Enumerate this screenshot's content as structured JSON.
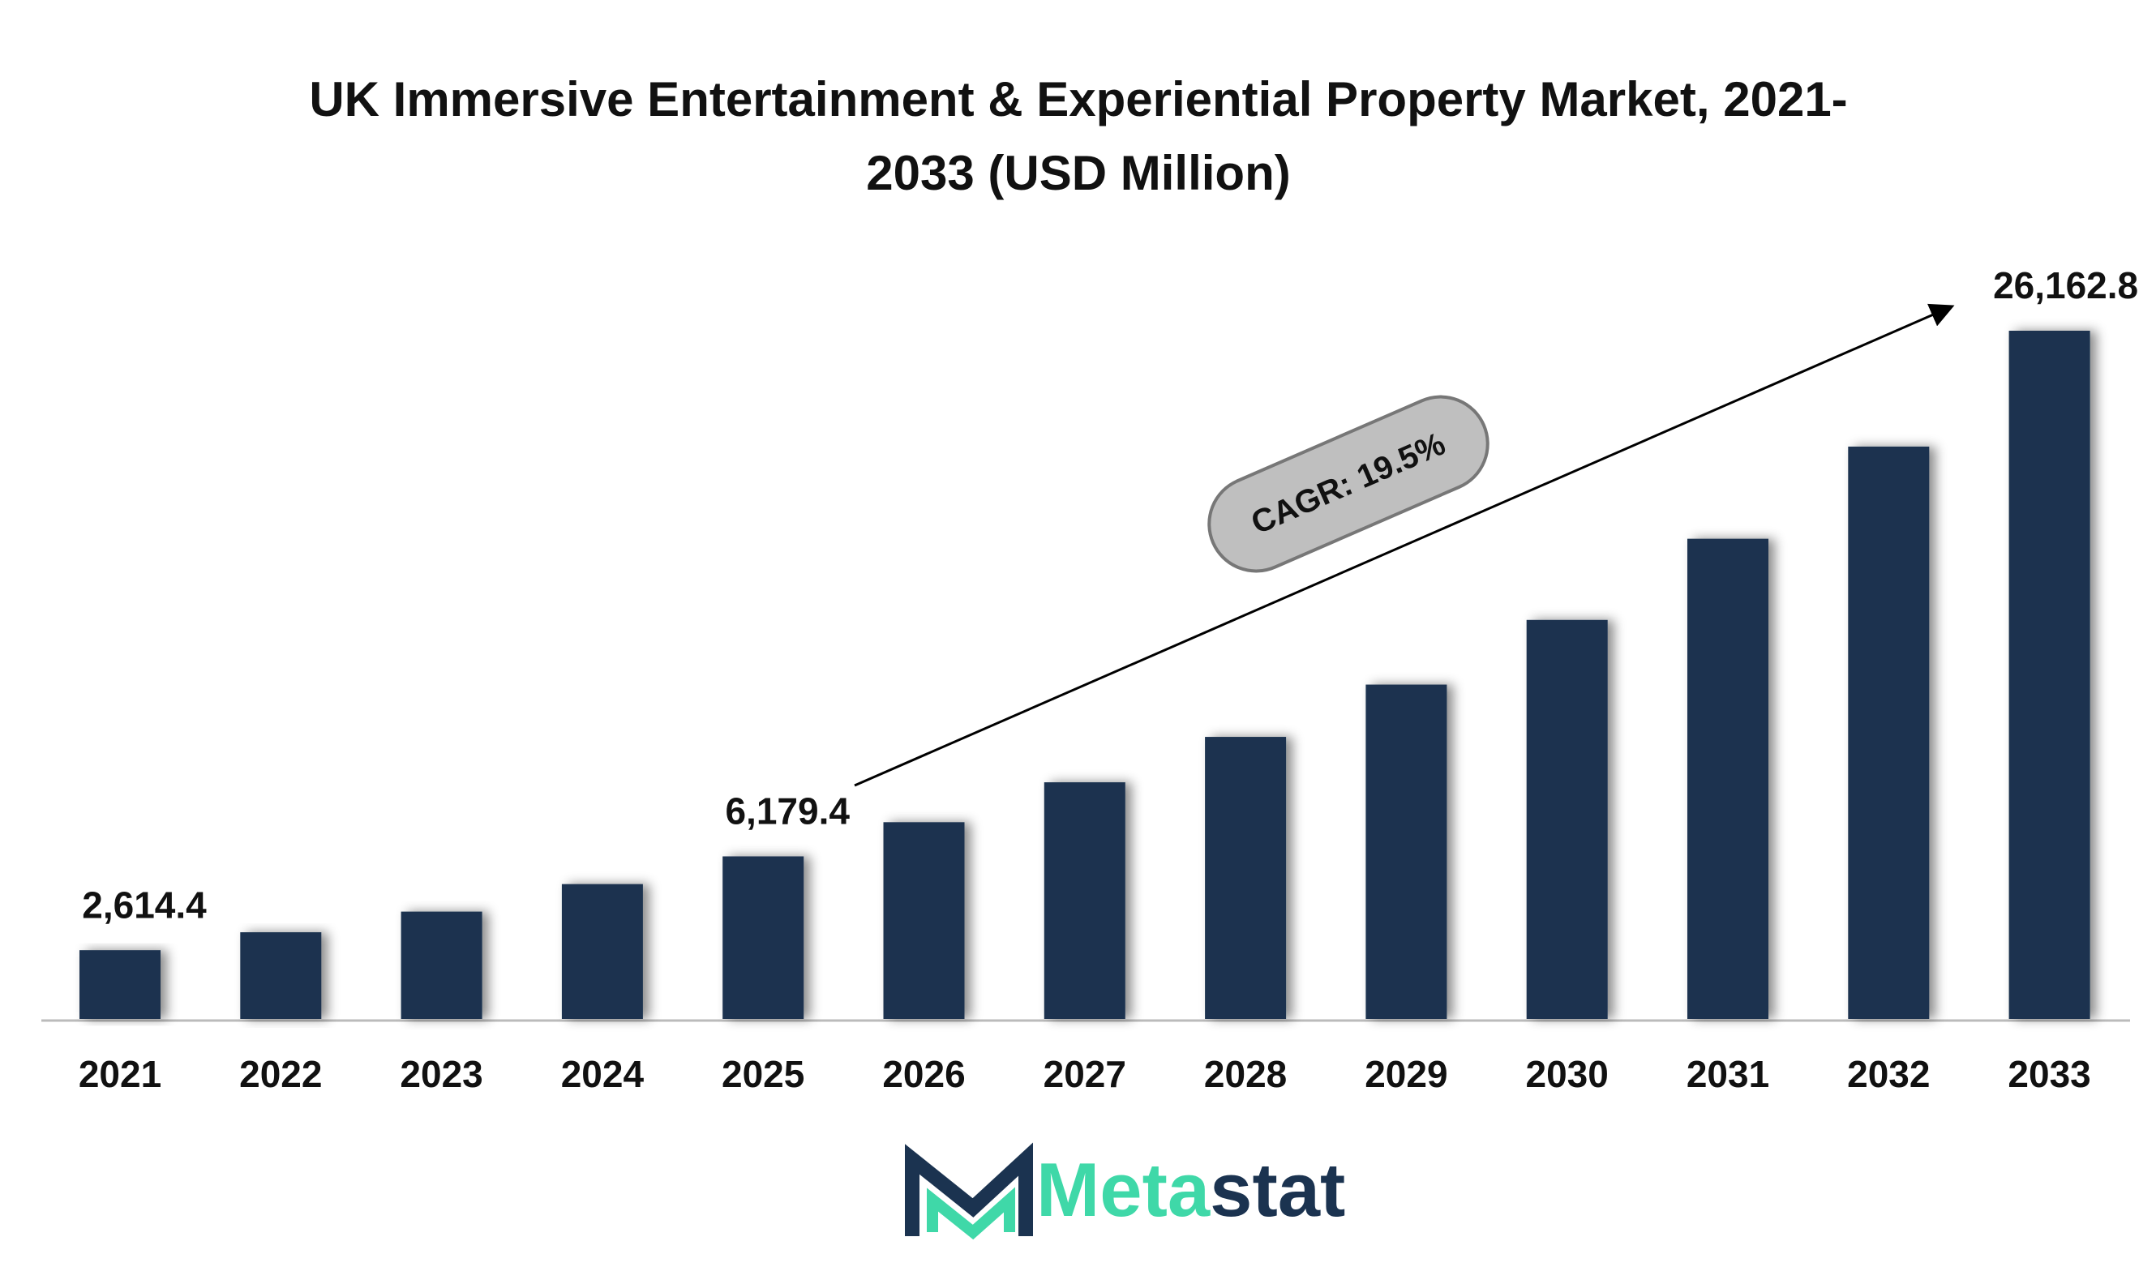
{
  "chart_data": {
    "type": "bar",
    "title": [
      "UK Immersive Entertainment & Experiential Property Market, 2021-",
      "2033 (USD Million)"
    ],
    "categories": [
      "2021",
      "2022",
      "2023",
      "2024",
      "2025",
      "2026",
      "2027",
      "2028",
      "2029",
      "2030",
      "2031",
      "2032",
      "2033"
    ],
    "values": [
      2614.4,
      3295,
      4080,
      5126,
      6179.4,
      7479,
      8996,
      10722,
      12710,
      15168,
      18254,
      21758,
      26162.8
    ],
    "value_labels": [
      "2,614.4",
      null,
      null,
      null,
      "6,179.4",
      null,
      null,
      null,
      null,
      null,
      null,
      null,
      "26,162.8"
    ],
    "color": "#1b3350",
    "annotation": "CAGR: 19.5%",
    "brand": [
      "Meta",
      "stat"
    ]
  }
}
